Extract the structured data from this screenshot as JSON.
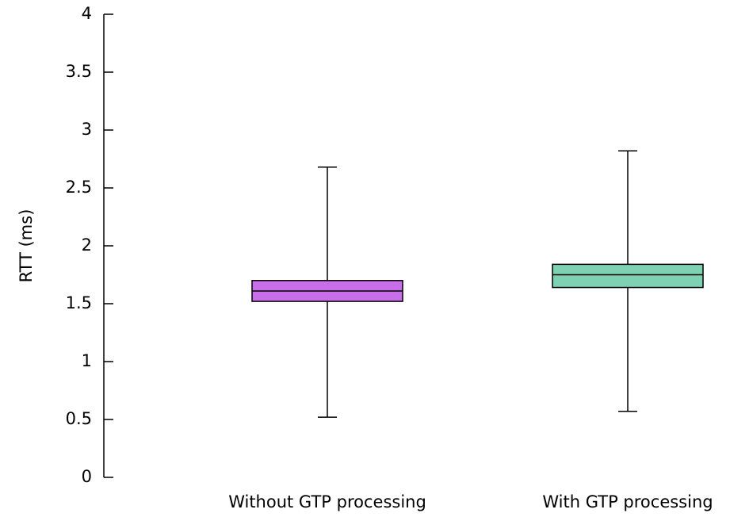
{
  "chart_data": {
    "type": "box",
    "ylabel": "RTT (ms)",
    "ylim": [
      0,
      4
    ],
    "yticks": [
      {
        "value": 0,
        "label": "0"
      },
      {
        "value": 0.5,
        "label": "0.5"
      },
      {
        "value": 1,
        "label": "1"
      },
      {
        "value": 1.5,
        "label": "1.5"
      },
      {
        "value": 2,
        "label": "2"
      },
      {
        "value": 2.5,
        "label": "2.5"
      },
      {
        "value": 3,
        "label": "3"
      },
      {
        "value": 3.5,
        "label": "3.5"
      },
      {
        "value": 4,
        "label": "4"
      }
    ],
    "categories": [
      "Without GTP processing",
      "With GTP processing"
    ],
    "boxes": [
      {
        "name": "Without GTP processing",
        "min": 0.52,
        "q1": 1.52,
        "median": 1.61,
        "q3": 1.7,
        "max": 2.68,
        "color": "#c86ee8"
      },
      {
        "name": "With GTP processing",
        "min": 0.57,
        "q1": 1.64,
        "median": 1.75,
        "q3": 1.84,
        "max": 2.82,
        "color": "#7fd1b4"
      }
    ],
    "grid": false,
    "legend": "none"
  }
}
